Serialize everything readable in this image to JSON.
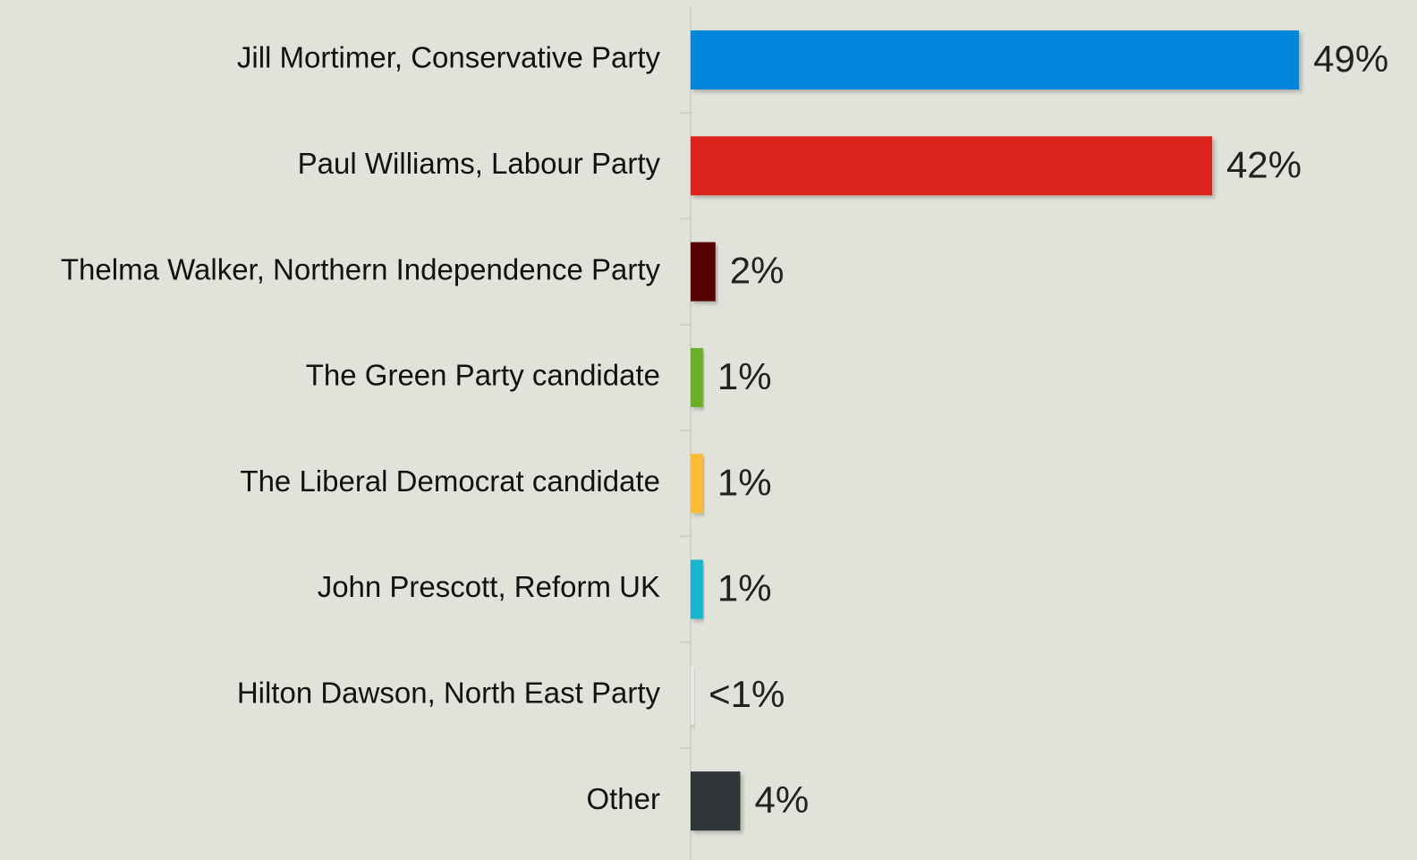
{
  "chart_data": {
    "type": "bar",
    "orientation": "horizontal",
    "categories": [
      "Jill Mortimer, Conservative Party",
      "Paul Williams, Labour Party",
      "Thelma Walker, Northern Independence Party",
      "The Green Party candidate",
      "The Liberal Democrat candidate",
      "John Prescott, Reform UK",
      "Hilton Dawson, North East Party",
      "Other"
    ],
    "values": [
      49,
      42,
      2,
      1,
      1,
      1,
      0.3,
      4
    ],
    "value_labels": [
      "49%",
      "42%",
      "2%",
      "1%",
      "1%",
      "1%",
      "<1%",
      "4%"
    ],
    "colors": [
      "#0087dc",
      "#dc241f",
      "#560000",
      "#6ab023",
      "#fdbb30",
      "#12b6cf",
      "#e8e8e2",
      "#333538"
    ],
    "title": "",
    "xlabel": "",
    "ylabel": "",
    "xlim": [
      0,
      50
    ],
    "grid": false,
    "legend": "none"
  }
}
